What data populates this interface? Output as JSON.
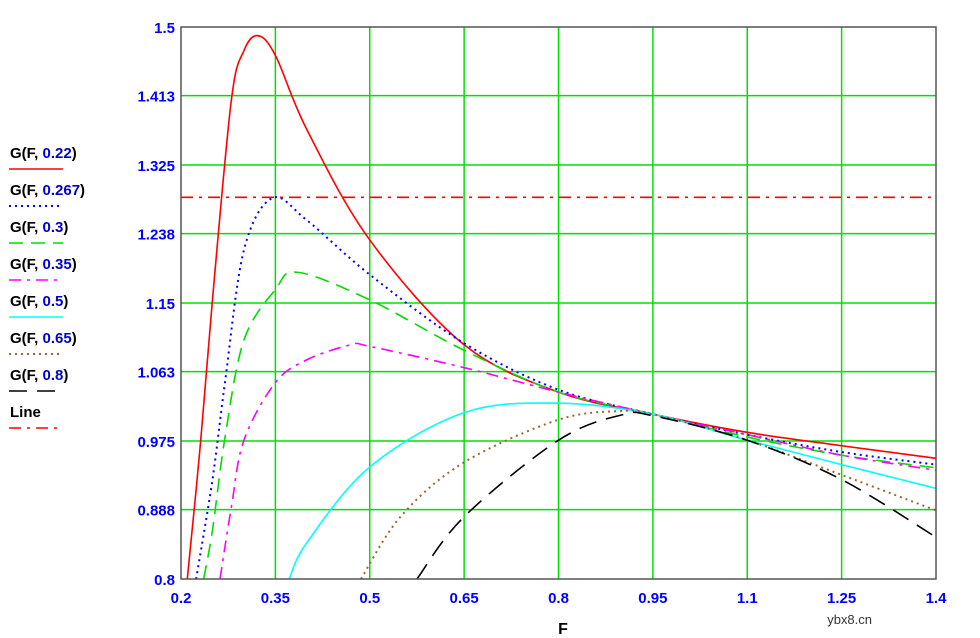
{
  "chart_data": {
    "type": "line",
    "title": "",
    "xlabel": "F",
    "ylabel": "",
    "xlim": [
      0.2,
      1.4
    ],
    "ylim": [
      0.8,
      1.5
    ],
    "x_ticks": [
      "0.2",
      "0.35",
      "0.5",
      "0.65",
      "0.8",
      "0.95",
      "1.1",
      "1.25",
      "1.4"
    ],
    "y_ticks": [
      "0.8",
      "0.888",
      "0.975",
      "1.063",
      "1.15",
      "1.238",
      "1.325",
      "1.413",
      "1.5"
    ],
    "grid": true,
    "grid_color": "#00e000",
    "legend_position": "left",
    "series": [
      {
        "name": "G(F, 0.22)",
        "param": "0.22",
        "color": "#ff0000",
        "style": "solid",
        "points": [
          [
            0.21,
            0.8
          ],
          [
            0.23,
            0.964
          ],
          [
            0.25,
            1.154
          ],
          [
            0.28,
            1.407
          ],
          [
            0.3,
            1.47
          ],
          [
            0.322,
            1.489
          ],
          [
            0.35,
            1.464
          ],
          [
            0.4,
            1.37
          ],
          [
            0.5,
            1.23
          ],
          [
            0.65,
            1.097
          ],
          [
            0.8,
            1.037
          ],
          [
            0.95,
            1.009
          ],
          [
            1.1,
            0.986
          ],
          [
            1.25,
            0.969
          ],
          [
            1.4,
            0.953
          ]
        ]
      },
      {
        "name": "G(F, 0.267)",
        "param": "0.267",
        "color": "#0000ff",
        "style": "dot",
        "points": [
          [
            0.224,
            0.8
          ],
          [
            0.25,
            0.926
          ],
          [
            0.27,
            1.05
          ],
          [
            0.3,
            1.217
          ],
          [
            0.345,
            1.283
          ],
          [
            0.4,
            1.255
          ],
          [
            0.5,
            1.186
          ],
          [
            0.65,
            1.099
          ],
          [
            0.8,
            1.04
          ],
          [
            0.95,
            1.009
          ],
          [
            1.1,
            0.983
          ],
          [
            1.25,
            0.961
          ],
          [
            1.4,
            0.945
          ]
        ]
      },
      {
        "name": "G(F, 0.3)",
        "param": "0.3",
        "color": "#00dd00",
        "style": "dash",
        "points": [
          [
            0.236,
            0.8
          ],
          [
            0.25,
            0.862
          ],
          [
            0.27,
            0.98
          ],
          [
            0.3,
            1.103
          ],
          [
            0.35,
            1.167
          ],
          [
            0.385,
            1.189
          ],
          [
            0.5,
            1.154
          ],
          [
            0.65,
            1.09
          ],
          [
            0.8,
            1.037
          ],
          [
            0.95,
            1.009
          ],
          [
            1.1,
            0.98
          ],
          [
            1.25,
            0.957
          ],
          [
            1.4,
            0.941
          ]
        ]
      },
      {
        "name": "G(F, 0.35)",
        "param": "0.35",
        "color": "#ff00ff",
        "style": "dashdot",
        "points": [
          [
            0.262,
            0.8
          ],
          [
            0.28,
            0.891
          ],
          [
            0.3,
            0.976
          ],
          [
            0.35,
            1.049
          ],
          [
            0.4,
            1.078
          ],
          [
            0.47,
            1.097
          ],
          [
            0.5,
            1.095
          ],
          [
            0.65,
            1.068
          ],
          [
            0.8,
            1.037
          ],
          [
            0.95,
            1.009
          ],
          [
            1.1,
            0.983
          ],
          [
            1.25,
            0.957
          ],
          [
            1.4,
            0.938
          ]
        ]
      },
      {
        "name": "G(F, 0.5)",
        "param": "0.5",
        "color": "#00ffff",
        "style": "solid",
        "points": [
          [
            0.372,
            0.8
          ],
          [
            0.4,
            0.846
          ],
          [
            0.5,
            0.942
          ],
          [
            0.65,
            1.011
          ],
          [
            0.8,
            1.023
          ],
          [
            0.95,
            1.009
          ],
          [
            1.1,
            0.976
          ],
          [
            1.25,
            0.945
          ],
          [
            1.4,
            0.915
          ]
        ]
      },
      {
        "name": "G(F, 0.65)",
        "param": "0.65",
        "color": "#996633",
        "style": "dot",
        "points": [
          [
            0.486,
            0.8
          ],
          [
            0.55,
            0.88
          ],
          [
            0.65,
            0.948
          ],
          [
            0.8,
            1.002
          ],
          [
            0.9,
            1.013
          ],
          [
            0.95,
            1.009
          ],
          [
            1.1,
            0.976
          ],
          [
            1.25,
            0.932
          ],
          [
            1.4,
            0.887
          ]
        ]
      },
      {
        "name": "G(F, 0.8)",
        "param": "0.8",
        "color": "#000000",
        "style": "longdash",
        "points": [
          [
            0.575,
            0.8
          ],
          [
            0.65,
            0.879
          ],
          [
            0.8,
            0.976
          ],
          [
            0.9,
            1.008
          ],
          [
            0.95,
            1.007
          ],
          [
            1.1,
            0.976
          ],
          [
            1.25,
            0.926
          ],
          [
            1.4,
            0.853
          ]
        ]
      },
      {
        "name": "Line",
        "param": "",
        "color": "#ff0000",
        "style": "dashdot",
        "points": [
          [
            0.2,
            1.284
          ],
          [
            1.4,
            1.284
          ]
        ]
      }
    ]
  },
  "watermark": "ybx8.cn"
}
